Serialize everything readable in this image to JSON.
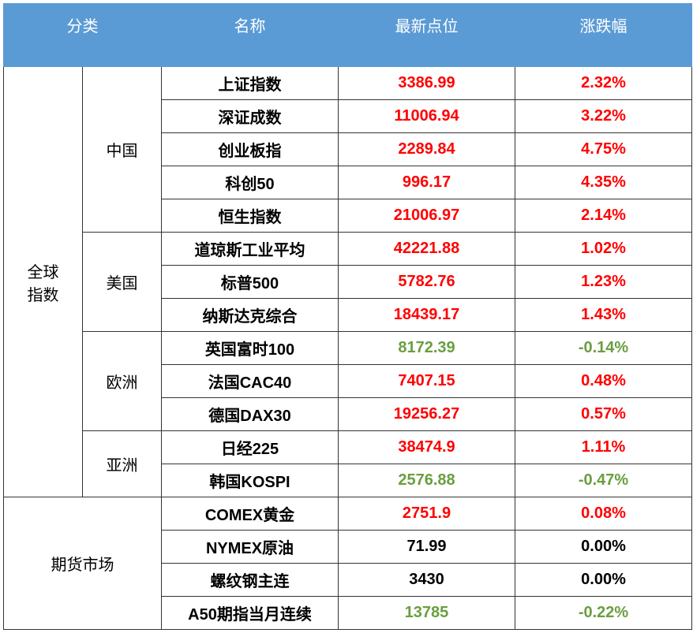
{
  "header": {
    "category": "分类",
    "name": "名称",
    "value": "最新点位",
    "change": "涨跌幅"
  },
  "colors": {
    "header_bg": "#5b9bd5",
    "header_text": "#ffffff",
    "border": "#333333",
    "up": "#ff0000",
    "down": "#6a9e3f",
    "neutral": "#000000"
  },
  "body": [
    {
      "category": "全球指数",
      "regions": [
        {
          "region": "中国",
          "rows": [
            {
              "name": "上证指数",
              "value": "3386.99",
              "change": "2.32%",
              "dir": "up"
            },
            {
              "name": "深证成数",
              "value": "11006.94",
              "change": "3.22%",
              "dir": "up"
            },
            {
              "name": "创业板指",
              "value": "2289.84",
              "change": "4.75%",
              "dir": "up"
            },
            {
              "name": "科创50",
              "value": "996.17",
              "change": "4.35%",
              "dir": "up"
            },
            {
              "name": "恒生指数",
              "value": "21006.97",
              "change": "2.14%",
              "dir": "up"
            }
          ]
        },
        {
          "region": "美国",
          "rows": [
            {
              "name": "道琼斯工业平均",
              "value": "42221.88",
              "change": "1.02%",
              "dir": "up"
            },
            {
              "name": "标普500",
              "value": "5782.76",
              "change": "1.23%",
              "dir": "up"
            },
            {
              "name": "纳斯达克综合",
              "value": "18439.17",
              "change": "1.43%",
              "dir": "up"
            }
          ]
        },
        {
          "region": "欧洲",
          "rows": [
            {
              "name": "英国富时100",
              "value": "8172.39",
              "change": "-0.14%",
              "dir": "down"
            },
            {
              "name": "法国CAC40",
              "value": "7407.15",
              "change": "0.48%",
              "dir": "up"
            },
            {
              "name": "德国DAX30",
              "value": "19256.27",
              "change": "0.57%",
              "dir": "up"
            }
          ]
        },
        {
          "region": "亚洲",
          "rows": [
            {
              "name": "日经225",
              "value": "38474.9",
              "change": "1.11%",
              "dir": "up"
            },
            {
              "name": "韩国KOSPI",
              "value": "2576.88",
              "change": "-0.47%",
              "dir": "down"
            }
          ]
        }
      ]
    },
    {
      "category": "期货市场",
      "regions": [
        {
          "region": null,
          "rows": [
            {
              "name": "COMEX黄金",
              "value": "2751.9",
              "change": "0.08%",
              "dir": "up"
            },
            {
              "name": "NYMEX原油",
              "value": "71.99",
              "change": "0.00%",
              "dir": "neutral"
            },
            {
              "name": "螺纹钢主连",
              "value": "3430",
              "change": "0.00%",
              "dir": "neutral"
            },
            {
              "name": "A50期指当月连续",
              "value": "13785",
              "change": "-0.22%",
              "dir": "down"
            }
          ]
        }
      ]
    }
  ]
}
